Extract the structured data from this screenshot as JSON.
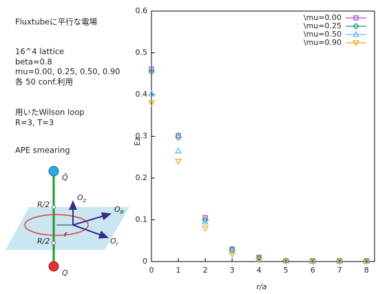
{
  "notes": [
    "Fluxtubeに平行な電場",
    "16^4 lattice",
    "beta=0.8",
    "mu=0.00, 0.25, 0.50, 0.90",
    "各 50 conf.利用",
    "用いたWilson loop",
    "R=3, T=3",
    "APE smearing"
  ],
  "diagram": {
    "q_bar": "Q̄",
    "q": "Q",
    "half_r_top": "R/2",
    "half_r_bottom": "R/2",
    "r": "r",
    "o_z": {
      "label": "O",
      "sub": "z"
    },
    "o_theta": {
      "label": "O",
      "sub": "θ"
    },
    "o_r": {
      "label": "O",
      "sub": "r"
    }
  },
  "chart_data": {
    "type": "scatter",
    "xlabel": "r/a",
    "ylabel": "Ez",
    "x": [
      0,
      1,
      2,
      3,
      4,
      5,
      6,
      7,
      8
    ],
    "xlim": [
      0,
      8.3
    ],
    "xticks": [
      0,
      1,
      2,
      3,
      4,
      5,
      6,
      7,
      8
    ],
    "ylim": [
      0,
      0.6
    ],
    "yticks": [
      0,
      0.1,
      0.2,
      0.3,
      0.4,
      0.5,
      0.6
    ],
    "legend": "upper right",
    "series": [
      {
        "name": "\\mu=0.00",
        "color": "#b040c8",
        "marker": "square",
        "values": [
          0.461,
          0.302,
          0.105,
          0.03,
          0.01,
          0.002,
          0.002,
          0.002,
          0.002
        ]
      },
      {
        "name": "\\mu=0.25",
        "color": "#10a080",
        "marker": "diamond",
        "values": [
          0.455,
          0.298,
          0.1,
          0.028,
          0.008,
          0.002,
          0.001,
          0.001,
          0.001
        ]
      },
      {
        "name": "\\mu=0.50",
        "color": "#60b8e8",
        "marker": "triangle-up",
        "values": [
          0.402,
          0.265,
          0.095,
          0.025,
          0.006,
          0.002,
          0.001,
          0.001,
          0.001
        ]
      },
      {
        "name": "\\mu=0.90",
        "color": "#e8b020",
        "marker": "triangle-down",
        "values": [
          0.38,
          0.24,
          0.08,
          0.018,
          0.004,
          0.001,
          0.0,
          0.0,
          0.0
        ]
      }
    ]
  }
}
